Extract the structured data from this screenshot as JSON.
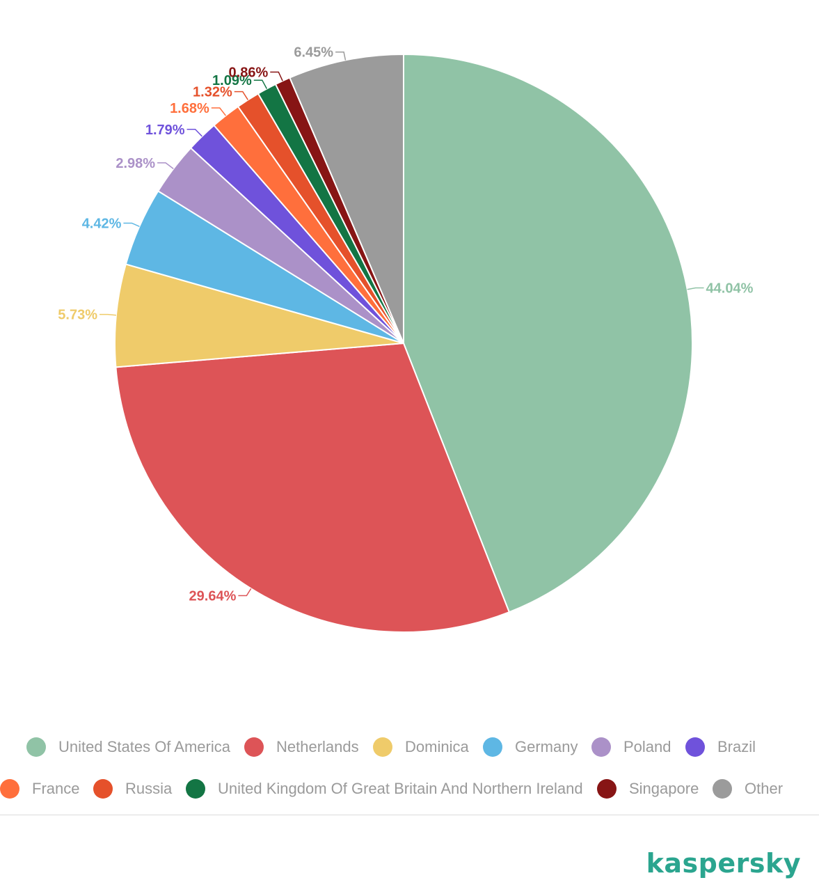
{
  "chart_data": {
    "type": "pie",
    "title": "",
    "start": "top-clockwise",
    "legend_position": "bottom",
    "slices": [
      {
        "name": "United States Of America",
        "value": 44.04,
        "label": "44.04%",
        "color": "#90c3a6"
      },
      {
        "name": "Netherlands",
        "value": 29.64,
        "label": "29.64%",
        "color": "#dd5457"
      },
      {
        "name": "Dominica",
        "value": 5.73,
        "label": "5.73%",
        "color": "#efcb6a"
      },
      {
        "name": "Germany",
        "value": 4.42,
        "label": "4.42%",
        "color": "#5eb7e4"
      },
      {
        "name": "Poland",
        "value": 2.98,
        "label": "2.98%",
        "color": "#ab91c8"
      },
      {
        "name": "Brazil",
        "value": 1.79,
        "label": "1.79%",
        "color": "#6f52db"
      },
      {
        "name": "France",
        "value": 1.68,
        "label": "1.68%",
        "color": "#ff6f3c"
      },
      {
        "name": "Russia",
        "value": 1.32,
        "label": "1.32%",
        "color": "#e5512b"
      },
      {
        "name": "United Kingdom Of Great Britain And Northern Ireland",
        "value": 1.09,
        "label": "1.09%",
        "color": "#137544"
      },
      {
        "name": "Singapore",
        "value": 0.86,
        "label": "0.86%",
        "color": "#871515"
      },
      {
        "name": "Other",
        "value": 6.45,
        "label": "6.45%",
        "color": "#9b9b9b"
      }
    ]
  },
  "legend": {
    "rows": [
      [
        0,
        1,
        2,
        3,
        4,
        5
      ],
      [
        6,
        7,
        8,
        9,
        10
      ]
    ]
  },
  "brand": {
    "name": "kaspersky",
    "color": "#2ba58f"
  }
}
